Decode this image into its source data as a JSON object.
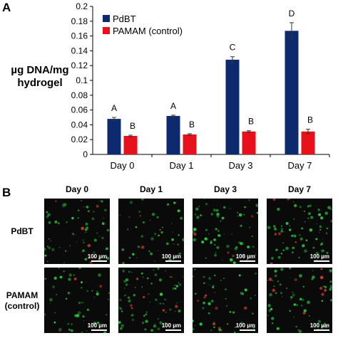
{
  "panel_labels": {
    "a": "A",
    "b": "B"
  },
  "ylabel_lines": [
    "µg DNA/mg",
    "hydrogel"
  ],
  "chart_data": {
    "type": "bar",
    "categories": [
      "Day 0",
      "Day 1",
      "Day 3",
      "Day 7"
    ],
    "series": [
      {
        "name": "PdBT",
        "color": "#0d2a6e",
        "values": [
          0.048,
          0.052,
          0.128,
          0.167
        ],
        "errors": [
          0.002,
          0.001,
          0.004,
          0.011
        ],
        "letters": [
          "A",
          "A",
          "C",
          "D"
        ]
      },
      {
        "name": "PAMAM (control)",
        "color": "#e8101a",
        "values": [
          0.025,
          0.027,
          0.031,
          0.031
        ],
        "errors": [
          0.001,
          0.001,
          0.001,
          0.003
        ],
        "letters": [
          "B",
          "B",
          "B",
          "B"
        ]
      }
    ],
    "ylim": [
      0,
      0.2
    ],
    "yticks": [
      "0",
      "0.02",
      "0.04",
      "0.06",
      "0.08",
      "0.1",
      "0.12",
      "0.14",
      "0.16",
      "0.18",
      "0.2"
    ],
    "legend_position": "top-left",
    "grid": false
  },
  "micrographs": {
    "columns": [
      "Day 0",
      "Day 1",
      "Day 3",
      "Day 7"
    ],
    "rows": [
      {
        "label_lines": [
          "PdBT"
        ]
      },
      {
        "label_lines": [
          "PAMAM",
          "(control)"
        ]
      }
    ],
    "scale_bar": "100 µm"
  }
}
